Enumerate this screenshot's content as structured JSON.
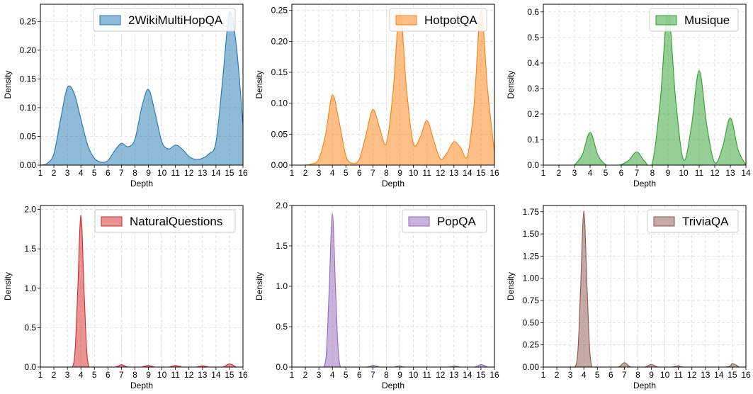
{
  "figure": {
    "x_label": "Depth",
    "y_label": "Density"
  },
  "chart_data": [
    {
      "type": "area",
      "legend": "2WikiMultiHopQA",
      "color": "#1f77b4",
      "xlim": [
        1,
        16
      ],
      "ylim": [
        0,
        0.28
      ],
      "xticks": [
        1,
        2,
        3,
        4,
        5,
        6,
        7,
        8,
        9,
        10,
        11,
        12,
        13,
        14,
        15,
        16
      ],
      "yticks": [
        0.0,
        0.05,
        0.1,
        0.15,
        0.2,
        0.25
      ],
      "ytick_labels": [
        "0.00",
        "0.05",
        "0.10",
        "0.15",
        "0.20",
        "0.25"
      ],
      "grid": true,
      "legend_position": "upper-right",
      "xlabel": "Depth",
      "ylabel": "Density",
      "x": [
        1,
        1.5,
        2,
        2.5,
        3,
        3.5,
        4,
        4.5,
        5,
        5.5,
        6,
        6.5,
        7,
        7.5,
        8,
        8.5,
        9,
        9.5,
        10,
        10.5,
        11,
        11.5,
        12,
        12.5,
        13,
        13.5,
        14,
        14.5,
        15,
        15.5,
        16
      ],
      "y": [
        0.0,
        0.003,
        0.02,
        0.08,
        0.135,
        0.125,
        0.08,
        0.035,
        0.012,
        0.005,
        0.008,
        0.025,
        0.038,
        0.032,
        0.045,
        0.1,
        0.132,
        0.09,
        0.04,
        0.028,
        0.035,
        0.028,
        0.015,
        0.01,
        0.012,
        0.02,
        0.04,
        0.15,
        0.265,
        0.21,
        0.07
      ]
    },
    {
      "type": "area",
      "legend": "HotpotQA",
      "color": "#ff7f0e",
      "xlim": [
        1,
        16
      ],
      "ylim": [
        0,
        0.26
      ],
      "xticks": [
        1,
        2,
        3,
        4,
        5,
        6,
        7,
        8,
        9,
        10,
        11,
        12,
        13,
        14,
        15,
        16
      ],
      "yticks": [
        0.0,
        0.05,
        0.1,
        0.15,
        0.2,
        0.25
      ],
      "ytick_labels": [
        "0.00",
        "0.05",
        "0.10",
        "0.15",
        "0.20",
        "0.25"
      ],
      "grid": true,
      "legend_position": "upper-right",
      "xlabel": "Depth",
      "ylabel": "Density",
      "x": [
        2,
        2.5,
        3,
        3.5,
        4,
        4.5,
        5,
        5.5,
        6,
        6.5,
        7,
        7.5,
        8,
        8.5,
        9,
        9.5,
        10,
        10.5,
        11,
        11.5,
        12,
        12.5,
        13,
        13.5,
        14,
        14.5,
        15,
        15.5,
        16
      ],
      "y": [
        0.0,
        0.002,
        0.01,
        0.05,
        0.113,
        0.07,
        0.015,
        0.003,
        0.01,
        0.05,
        0.09,
        0.06,
        0.035,
        0.12,
        0.25,
        0.12,
        0.035,
        0.045,
        0.072,
        0.04,
        0.01,
        0.02,
        0.038,
        0.028,
        0.015,
        0.1,
        0.25,
        0.12,
        0.02
      ]
    },
    {
      "type": "area",
      "legend": "Musique",
      "color": "#2ca02c",
      "xlim": [
        1,
        14
      ],
      "ylim": [
        0,
        0.63
      ],
      "xticks": [
        1,
        2,
        3,
        4,
        5,
        6,
        7,
        8,
        9,
        10,
        11,
        12,
        13,
        14
      ],
      "yticks": [
        0.0,
        0.1,
        0.2,
        0.3,
        0.4,
        0.5,
        0.6
      ],
      "ytick_labels": [
        "0.0",
        "0.1",
        "0.2",
        "0.3",
        "0.4",
        "0.5",
        "0.6"
      ],
      "grid": true,
      "legend_position": "upper-right",
      "xlabel": "Depth",
      "ylabel": "Density",
      "x": [
        3,
        3.5,
        4,
        4.5,
        5,
        5.5,
        6,
        6.5,
        7,
        7.5,
        8,
        8.5,
        9,
        9.5,
        10,
        10.5,
        11,
        11.5,
        12,
        12.5,
        13,
        13.5,
        14
      ],
      "y": [
        0.0,
        0.04,
        0.128,
        0.04,
        0.002,
        0.0,
        0.002,
        0.02,
        0.052,
        0.015,
        0.01,
        0.25,
        0.6,
        0.25,
        0.02,
        0.15,
        0.37,
        0.15,
        0.01,
        0.07,
        0.185,
        0.06,
        0.0
      ]
    },
    {
      "type": "area",
      "legend": "NaturalQuestions",
      "color": "#d62728",
      "xlim": [
        1,
        16
      ],
      "ylim": [
        0,
        2.05
      ],
      "xticks": [
        1,
        2,
        3,
        4,
        5,
        6,
        7,
        8,
        9,
        10,
        11,
        12,
        13,
        14,
        15,
        16
      ],
      "yticks": [
        0.0,
        0.5,
        1.0,
        1.5,
        2.0
      ],
      "ytick_labels": [
        "0.0",
        "0.5",
        "1.0",
        "1.5",
        "2.0"
      ],
      "grid": true,
      "legend_position": "upper-right",
      "xlabel": "Depth",
      "ylabel": "Density",
      "x": [
        3,
        3.5,
        3.75,
        4,
        4.25,
        4.5,
        5,
        6.5,
        7,
        7.5,
        8.5,
        9,
        9.5,
        10.5,
        11,
        11.5,
        12.5,
        13,
        13.5,
        14.5,
        15,
        15.5
      ],
      "y": [
        0.0,
        0.08,
        0.9,
        1.93,
        0.9,
        0.08,
        0.0,
        0.0,
        0.03,
        0.0,
        0.0,
        0.02,
        0.0,
        0.0,
        0.02,
        0.0,
        0.0,
        0.015,
        0.0,
        0.0,
        0.04,
        0.0
      ]
    },
    {
      "type": "area",
      "legend": "PopQA",
      "color": "#9467bd",
      "xlim": [
        1,
        16
      ],
      "ylim": [
        0,
        2.0
      ],
      "xticks": [
        1,
        2,
        3,
        4,
        5,
        6,
        7,
        8,
        9,
        10,
        11,
        12,
        13,
        14,
        15,
        16
      ],
      "yticks": [
        0.0,
        0.5,
        1.0,
        1.5,
        2.0
      ],
      "ytick_labels": [
        "0.0",
        "0.5",
        "1.0",
        "1.5",
        "2.0"
      ],
      "grid": true,
      "legend_position": "upper-right",
      "xlabel": "Depth",
      "ylabel": "Density",
      "x": [
        3,
        3.5,
        3.75,
        4,
        4.25,
        4.5,
        5,
        6.5,
        7,
        7.5,
        8.5,
        9,
        9.5,
        12.5,
        13,
        13.5,
        14.5,
        15,
        15.5
      ],
      "y": [
        0.0,
        0.08,
        0.9,
        1.9,
        0.9,
        0.08,
        0.0,
        0.0,
        0.02,
        0.0,
        0.0,
        0.015,
        0.0,
        0.0,
        0.015,
        0.0,
        0.0,
        0.03,
        0.0
      ]
    },
    {
      "type": "area",
      "legend": "TriviaQA",
      "color": "#8c564b",
      "xlim": [
        1,
        16
      ],
      "ylim": [
        0,
        1.82
      ],
      "xticks": [
        1,
        2,
        3,
        4,
        5,
        6,
        7,
        8,
        9,
        10,
        11,
        12,
        13,
        14,
        15,
        16
      ],
      "yticks": [
        0.0,
        0.25,
        0.5,
        0.75,
        1.0,
        1.25,
        1.5,
        1.75
      ],
      "ytick_labels": [
        "0.00",
        "0.25",
        "0.50",
        "0.75",
        "1.00",
        "1.25",
        "1.50",
        "1.75"
      ],
      "grid": true,
      "legend_position": "upper-right",
      "xlabel": "Depth",
      "ylabel": "Density",
      "x": [
        3,
        3.5,
        3.75,
        4,
        4.25,
        4.5,
        5,
        6.5,
        7,
        7.5,
        8.5,
        9,
        9.5,
        10.5,
        11,
        11.5,
        14.5,
        15,
        15.5
      ],
      "y": [
        0.0,
        0.08,
        0.85,
        1.76,
        0.85,
        0.08,
        0.0,
        0.0,
        0.05,
        0.0,
        0.0,
        0.03,
        0.0,
        0.0,
        0.015,
        0.0,
        0.0,
        0.04,
        0.0
      ]
    }
  ]
}
